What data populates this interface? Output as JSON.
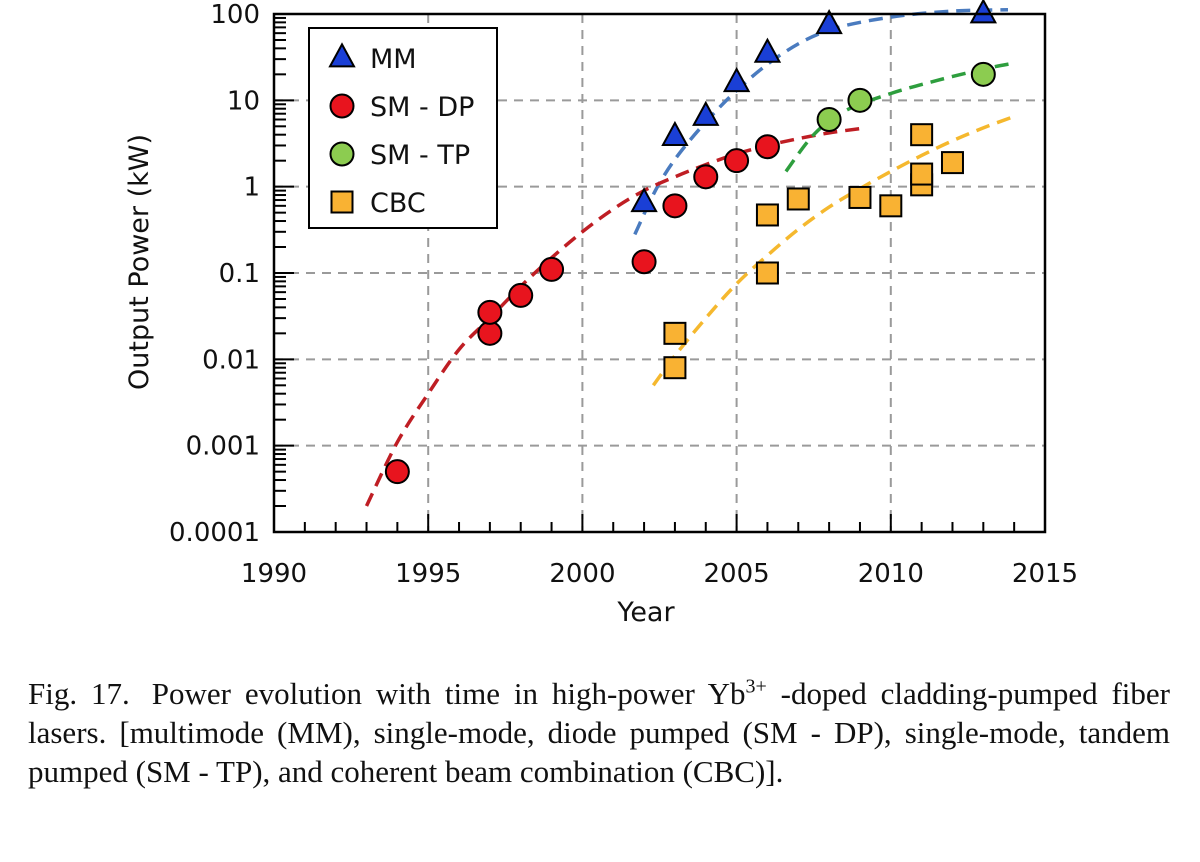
{
  "chart_data": {
    "type": "scatter",
    "xlabel": "Year",
    "ylabel": "Output Power (kW)",
    "xlim": [
      1990,
      2015
    ],
    "ylim": [
      0.0001,
      100
    ],
    "y_scale": "log",
    "x_ticks": [
      "1990",
      "1995",
      "2000",
      "2005",
      "2010",
      "2015"
    ],
    "y_ticks": [
      "0.0001",
      "0.001",
      "0.01",
      "0.1",
      "1",
      "10",
      "100"
    ],
    "grid": true,
    "legend_position": "top-left",
    "series": [
      {
        "name": "MM",
        "marker": "triangle",
        "color": "#1a3fd6",
        "points": [
          [
            2002,
            0.65
          ],
          [
            2003,
            3.8
          ],
          [
            2004,
            6.5
          ],
          [
            2005,
            16
          ],
          [
            2006,
            35
          ],
          [
            2008,
            75
          ],
          [
            2013,
            100
          ]
        ],
        "trend": {
          "color": "#4a7bbf",
          "points": [
            [
              2001.7,
              0.28
            ],
            [
              2002.5,
              1.1
            ],
            [
              2003.5,
              3.5
            ],
            [
              2005,
              13
            ],
            [
              2006.5,
              35
            ],
            [
              2008,
              65
            ],
            [
              2010,
              92
            ],
            [
              2012,
              108
            ],
            [
              2013.8,
              112
            ]
          ]
        }
      },
      {
        "name": "SM - DP",
        "marker": "circle",
        "color": "#e8141e",
        "points": [
          [
            1994,
            0.0005
          ],
          [
            1997,
            0.02
          ],
          [
            1997,
            0.035
          ],
          [
            1998,
            0.055
          ],
          [
            1999,
            0.11
          ],
          [
            2002,
            0.135
          ],
          [
            2003,
            0.6
          ],
          [
            2004,
            1.3
          ],
          [
            2005,
            2.0
          ],
          [
            2006,
            2.9
          ]
        ],
        "trend": {
          "color": "#bf1e24",
          "points": [
            [
              1993,
              0.0002
            ],
            [
              1994,
              0.0011
            ],
            [
              1995,
              0.004
            ],
            [
              1996,
              0.013
            ],
            [
              1997,
              0.03
            ],
            [
              1998,
              0.07
            ],
            [
              1999,
              0.15
            ],
            [
              2000,
              0.3
            ],
            [
              2001,
              0.55
            ],
            [
              2002,
              0.9
            ],
            [
              2003,
              1.3
            ],
            [
              2004,
              1.8
            ],
            [
              2005,
              2.4
            ],
            [
              2006,
              3.0
            ],
            [
              2007,
              3.6
            ],
            [
              2008,
              4.2
            ],
            [
              2009,
              4.7
            ]
          ]
        }
      },
      {
        "name": "SM - TP",
        "marker": "circle",
        "color": "#8ccc50",
        "points": [
          [
            2008,
            6.0
          ],
          [
            2009,
            10
          ],
          [
            2013,
            20
          ]
        ],
        "trend": {
          "color": "#2e9e3e",
          "points": [
            [
              2006.6,
              1.5
            ],
            [
              2007.5,
              4.0
            ],
            [
              2008.5,
              7.5
            ],
            [
              2010,
              12
            ],
            [
              2011.5,
              17
            ],
            [
              2013,
              23
            ],
            [
              2014,
              27
            ]
          ]
        }
      },
      {
        "name": "CBC",
        "marker": "square",
        "color": "#f9b233",
        "points": [
          [
            2003,
            0.008
          ],
          [
            2003,
            0.02
          ],
          [
            2006,
            0.1
          ],
          [
            2006,
            0.47
          ],
          [
            2007,
            0.72
          ],
          [
            2009,
            0.75
          ],
          [
            2010,
            0.6
          ],
          [
            2011,
            1.05
          ],
          [
            2011,
            1.4
          ],
          [
            2011,
            4.0
          ],
          [
            2012,
            1.9
          ]
        ],
        "trend": {
          "color": "#f5b82e",
          "points": [
            [
              2002.3,
              0.005
            ],
            [
              2003,
              0.011
            ],
            [
              2004,
              0.03
            ],
            [
              2005,
              0.075
            ],
            [
              2006,
              0.16
            ],
            [
              2007,
              0.32
            ],
            [
              2008,
              0.58
            ],
            [
              2009,
              0.95
            ],
            [
              2010,
              1.5
            ],
            [
              2011,
              2.3
            ],
            [
              2012,
              3.4
            ],
            [
              2013,
              4.8
            ],
            [
              2014,
              6.5
            ]
          ]
        }
      }
    ]
  },
  "caption": {
    "figure_number": "Fig. 17.",
    "text_before_superscript": "Power evolution with time in high-power Yb",
    "superscript": "3+",
    "text_after_superscript": "-doped cladding-pumped fiber lasers. [multimode (MM), single-mode, diode pumped (SM - DP), single-mode, tandem pumped (SM - TP), and coherent beam combination (CBC)]."
  }
}
